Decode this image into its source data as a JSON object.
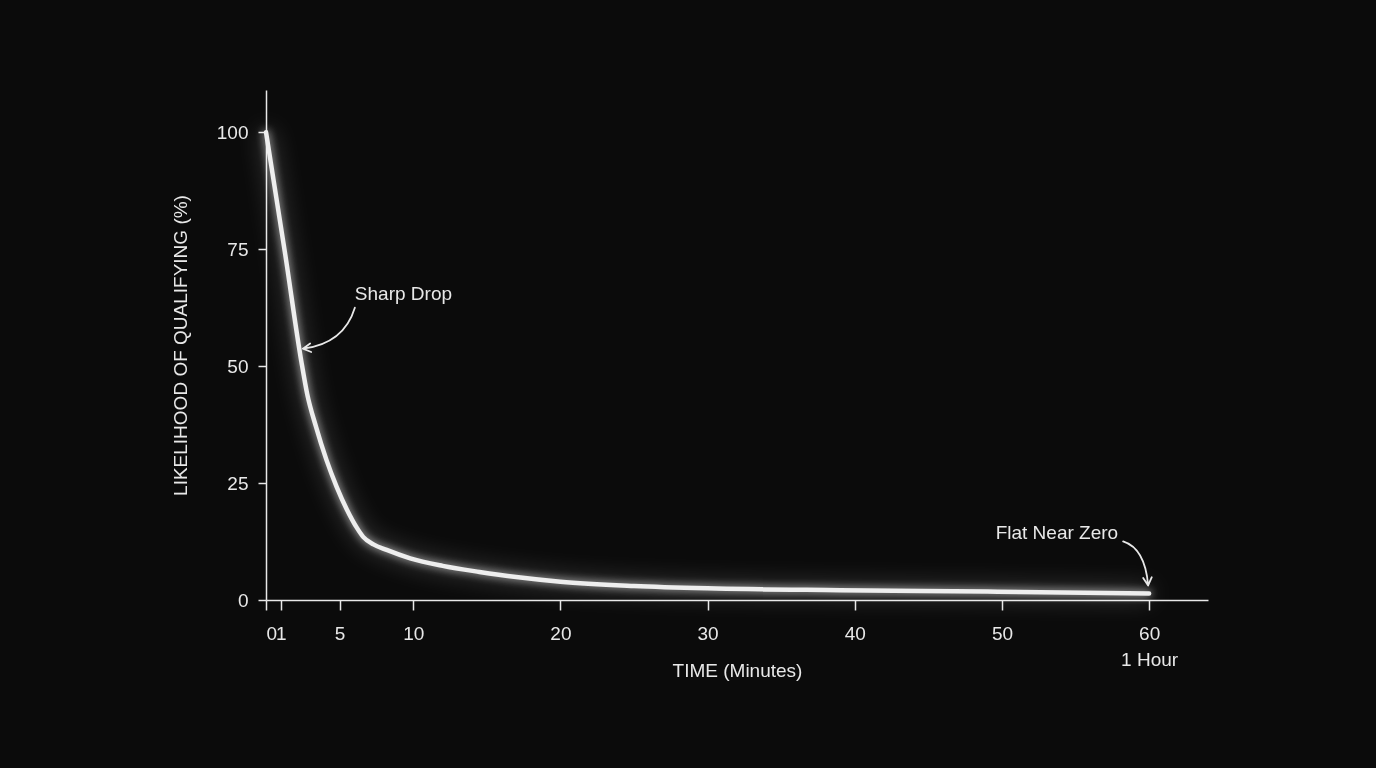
{
  "chart_data": {
    "type": "line",
    "xlabel": "TIME (Minutes)",
    "ylabel": "LIKELIHOOD OF QUALIFYING (%)",
    "x": [
      0,
      1.3,
      2.4,
      2.8,
      3.4,
      4.1,
      4.8,
      5.5,
      6.2,
      6.6,
      7.3,
      8.2,
      9.8,
      12,
      14.5,
      17,
      20,
      25,
      30,
      39,
      49,
      60
    ],
    "values": [
      100,
      74,
      51,
      44,
      37,
      30,
      24.2,
      19.3,
      15.3,
      13.5,
      11.9,
      10.7,
      8.9,
      7.3,
      6,
      4.9,
      3.9,
      3,
      2.5,
      2.1,
      1.8,
      1.4
    ],
    "color": "#eeeeee",
    "xlim": [
      0,
      64
    ],
    "ylim": [
      0,
      109
    ],
    "xticks": [
      0,
      1,
      5,
      10,
      20,
      30,
      40,
      50,
      {
        "value": 60,
        "label": "60\n1 Hour"
      }
    ],
    "yticks": [
      0,
      25,
      50,
      75,
      100
    ],
    "annotations": [
      {
        "text": "Sharp Drop",
        "x": 2.3,
        "y": 53.5
      },
      {
        "text": "Flat Near Zero",
        "x": 60,
        "y": 1.4
      }
    ]
  }
}
